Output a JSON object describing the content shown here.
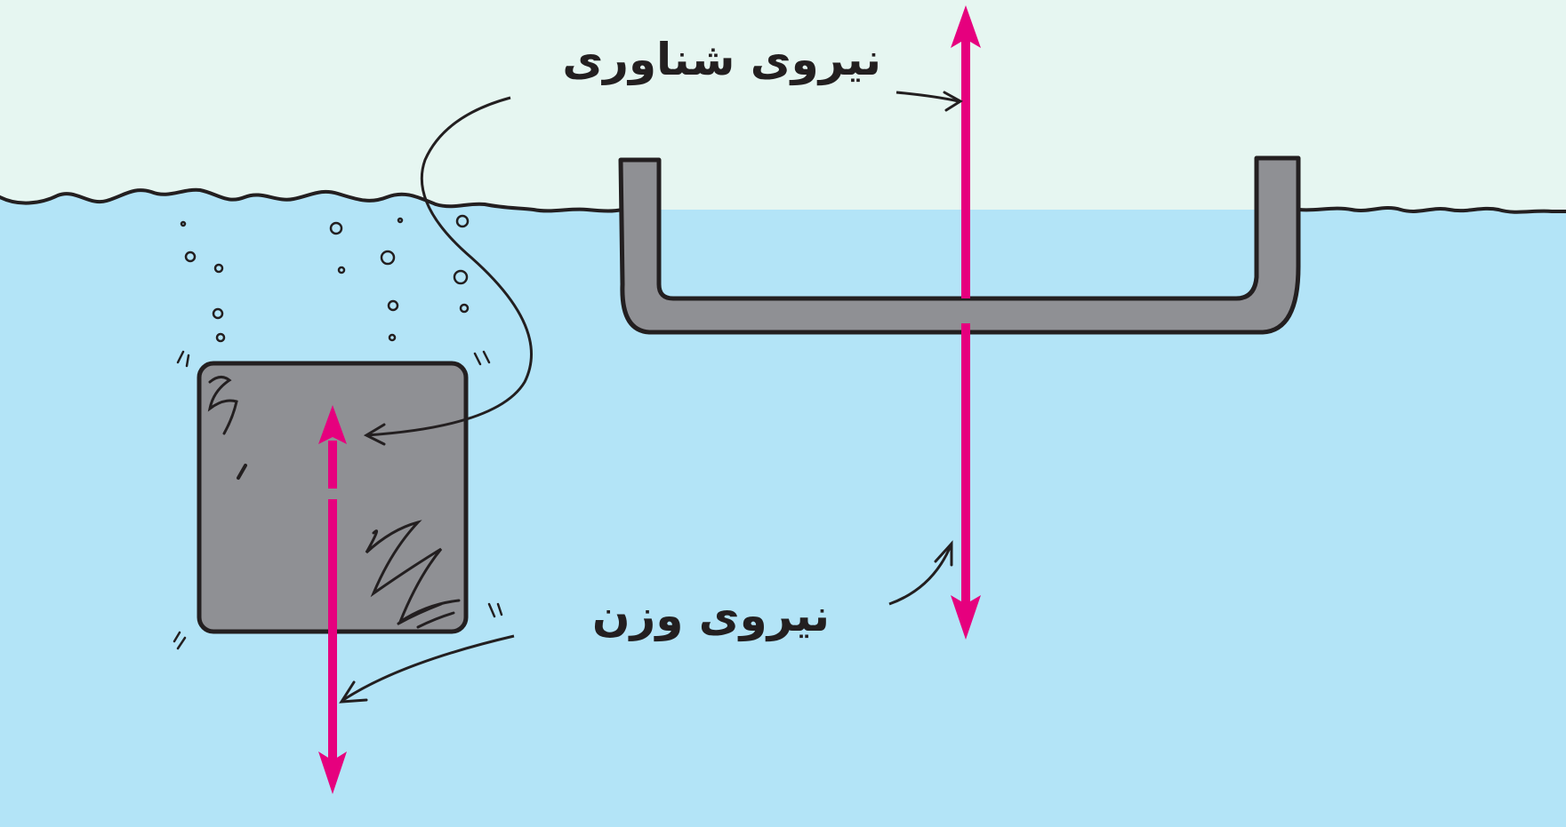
{
  "labels": {
    "buoyant_force": "نیروی شناوری",
    "weight_force": "نیروی وزن"
  },
  "colors": {
    "air": "#e6f6f1",
    "water": "#b3e4f7",
    "object_fill": "#8f9094",
    "outline": "#231f20",
    "force_arrow": "#e6007e"
  },
  "objects": {
    "submerged_block": "sinking solid cube",
    "floating_boat": "floating tray"
  }
}
